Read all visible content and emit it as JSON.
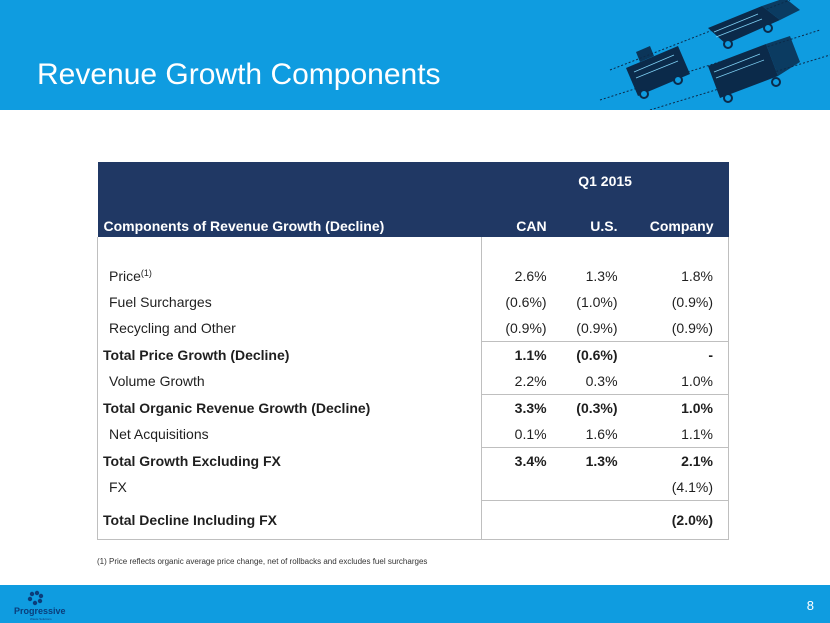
{
  "header": {
    "title": "Revenue Growth Components"
  },
  "table": {
    "period": "Q1 2015",
    "label_header": "Components of Revenue Growth (Decline)",
    "columns": [
      "CAN",
      "U.S.",
      "Company"
    ],
    "rows": [
      {
        "label": "Price",
        "sup": "(1)",
        "bold": false,
        "values": [
          "2.6%",
          "1.3%",
          "1.8%"
        ]
      },
      {
        "label": "Fuel Surcharges",
        "bold": false,
        "values": [
          "(0.6%)",
          "(1.0%)",
          "(0.9%)"
        ]
      },
      {
        "label": "Recycling and Other",
        "bold": false,
        "values": [
          "(0.9%)",
          "(0.9%)",
          "(0.9%)"
        ]
      },
      {
        "label": "Total Price Growth (Decline)",
        "bold": true,
        "values": [
          "1.1%",
          "(0.6%)",
          "-"
        ]
      },
      {
        "label": "Volume Growth",
        "bold": false,
        "values": [
          "2.2%",
          "0.3%",
          "1.0%"
        ]
      },
      {
        "label": "Total Organic Revenue Growth (Decline)",
        "bold": true,
        "values": [
          "3.3%",
          "(0.3%)",
          "1.0%"
        ]
      },
      {
        "label": "Net Acquisitions",
        "bold": false,
        "values": [
          "0.1%",
          "1.6%",
          "1.1%"
        ]
      },
      {
        "label": "Total Growth Excluding FX",
        "bold": true,
        "values": [
          "3.4%",
          "1.3%",
          "2.1%"
        ]
      },
      {
        "label": "FX",
        "bold": false,
        "values": [
          "",
          "",
          "(4.1%)"
        ]
      },
      {
        "label": "Total Decline Including FX",
        "bold": true,
        "values": [
          "",
          "",
          "(2.0%)"
        ]
      }
    ]
  },
  "footnote": "(1)  Price reflects organic average price change, net of rollbacks and excludes fuel surcharges",
  "footer": {
    "logo_text": "Progressive",
    "logo_subtext": "Waste Solutions",
    "page_number": "8"
  },
  "colors": {
    "brand_blue": "#0f9ce0",
    "table_header": "#203864",
    "truck_dark": "#0b2a4a"
  }
}
